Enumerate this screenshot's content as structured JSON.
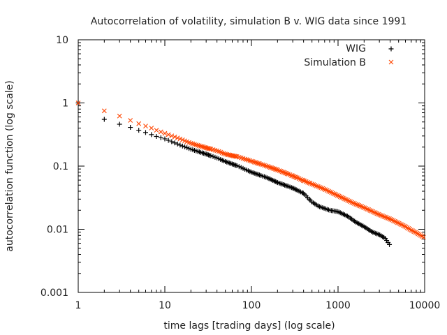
{
  "chart_data": {
    "type": "scatter",
    "title": "Autocorrelation of volatility, simulation B v. WIG data since 1991",
    "xlabel": "time lags [trading days] (log scale)",
    "ylabel": "autocorrelation function (log scale)",
    "x_scale": "log",
    "y_scale": "log",
    "xlim": [
      1,
      10000
    ],
    "ylim": [
      0.001,
      10
    ],
    "x_ticks": [
      {
        "value": 1,
        "label": "1"
      },
      {
        "value": 10,
        "label": "10"
      },
      {
        "value": 100,
        "label": "100"
      },
      {
        "value": 1000,
        "label": "1000"
      },
      {
        "value": 10000,
        "label": "10000"
      }
    ],
    "y_ticks": [
      {
        "value": 0.001,
        "label": "0.001"
      },
      {
        "value": 0.01,
        "label": "0.01"
      },
      {
        "value": 0.1,
        "label": "0.1"
      },
      {
        "value": 1,
        "label": "1"
      },
      {
        "value": 10,
        "label": "10"
      }
    ],
    "legend_position": "top-right",
    "series": [
      {
        "name": "WIG",
        "marker": "plus",
        "color": "#000000",
        "points": [
          [
            1,
            1.0
          ],
          [
            2,
            0.55
          ],
          [
            3,
            0.46
          ],
          [
            4,
            0.41
          ],
          [
            5,
            0.37
          ],
          [
            6,
            0.34
          ],
          [
            7,
            0.315
          ],
          [
            8,
            0.295
          ],
          [
            10,
            0.27
          ],
          [
            15,
            0.215
          ],
          [
            20,
            0.185
          ],
          [
            30,
            0.155
          ],
          [
            40,
            0.135
          ],
          [
            50,
            0.118
          ],
          [
            70,
            0.1
          ],
          [
            100,
            0.08
          ],
          [
            150,
            0.066
          ],
          [
            200,
            0.055
          ],
          [
            300,
            0.045
          ],
          [
            400,
            0.037
          ],
          [
            500,
            0.027
          ],
          [
            600,
            0.023
          ],
          [
            800,
            0.02
          ],
          [
            1000,
            0.019
          ],
          [
            1300,
            0.016
          ],
          [
            1600,
            0.013
          ],
          [
            2000,
            0.011
          ],
          [
            2500,
            0.009
          ],
          [
            3000,
            0.0082
          ],
          [
            3500,
            0.0072
          ],
          [
            4000,
            0.0055
          ]
        ]
      },
      {
        "name": "Simulation B",
        "marker": "cross",
        "color": "#ff4500",
        "points": [
          [
            1,
            1.0
          ],
          [
            2,
            0.75
          ],
          [
            3,
            0.62
          ],
          [
            4,
            0.53
          ],
          [
            5,
            0.47
          ],
          [
            6,
            0.43
          ],
          [
            7,
            0.4
          ],
          [
            8,
            0.37
          ],
          [
            10,
            0.33
          ],
          [
            15,
            0.27
          ],
          [
            20,
            0.23
          ],
          [
            30,
            0.195
          ],
          [
            40,
            0.175
          ],
          [
            50,
            0.155
          ],
          [
            70,
            0.14
          ],
          [
            100,
            0.12
          ],
          [
            150,
            0.1
          ],
          [
            200,
            0.087
          ],
          [
            300,
            0.07
          ],
          [
            400,
            0.059
          ],
          [
            500,
            0.052
          ],
          [
            700,
            0.043
          ],
          [
            1000,
            0.034
          ],
          [
            1500,
            0.026
          ],
          [
            2000,
            0.022
          ],
          [
            3000,
            0.017
          ],
          [
            4000,
            0.0145
          ],
          [
            5000,
            0.0125
          ],
          [
            6000,
            0.011
          ],
          [
            7000,
            0.0097
          ],
          [
            8000,
            0.0088
          ],
          [
            9000,
            0.008
          ],
          [
            10000,
            0.0073
          ]
        ]
      }
    ]
  }
}
